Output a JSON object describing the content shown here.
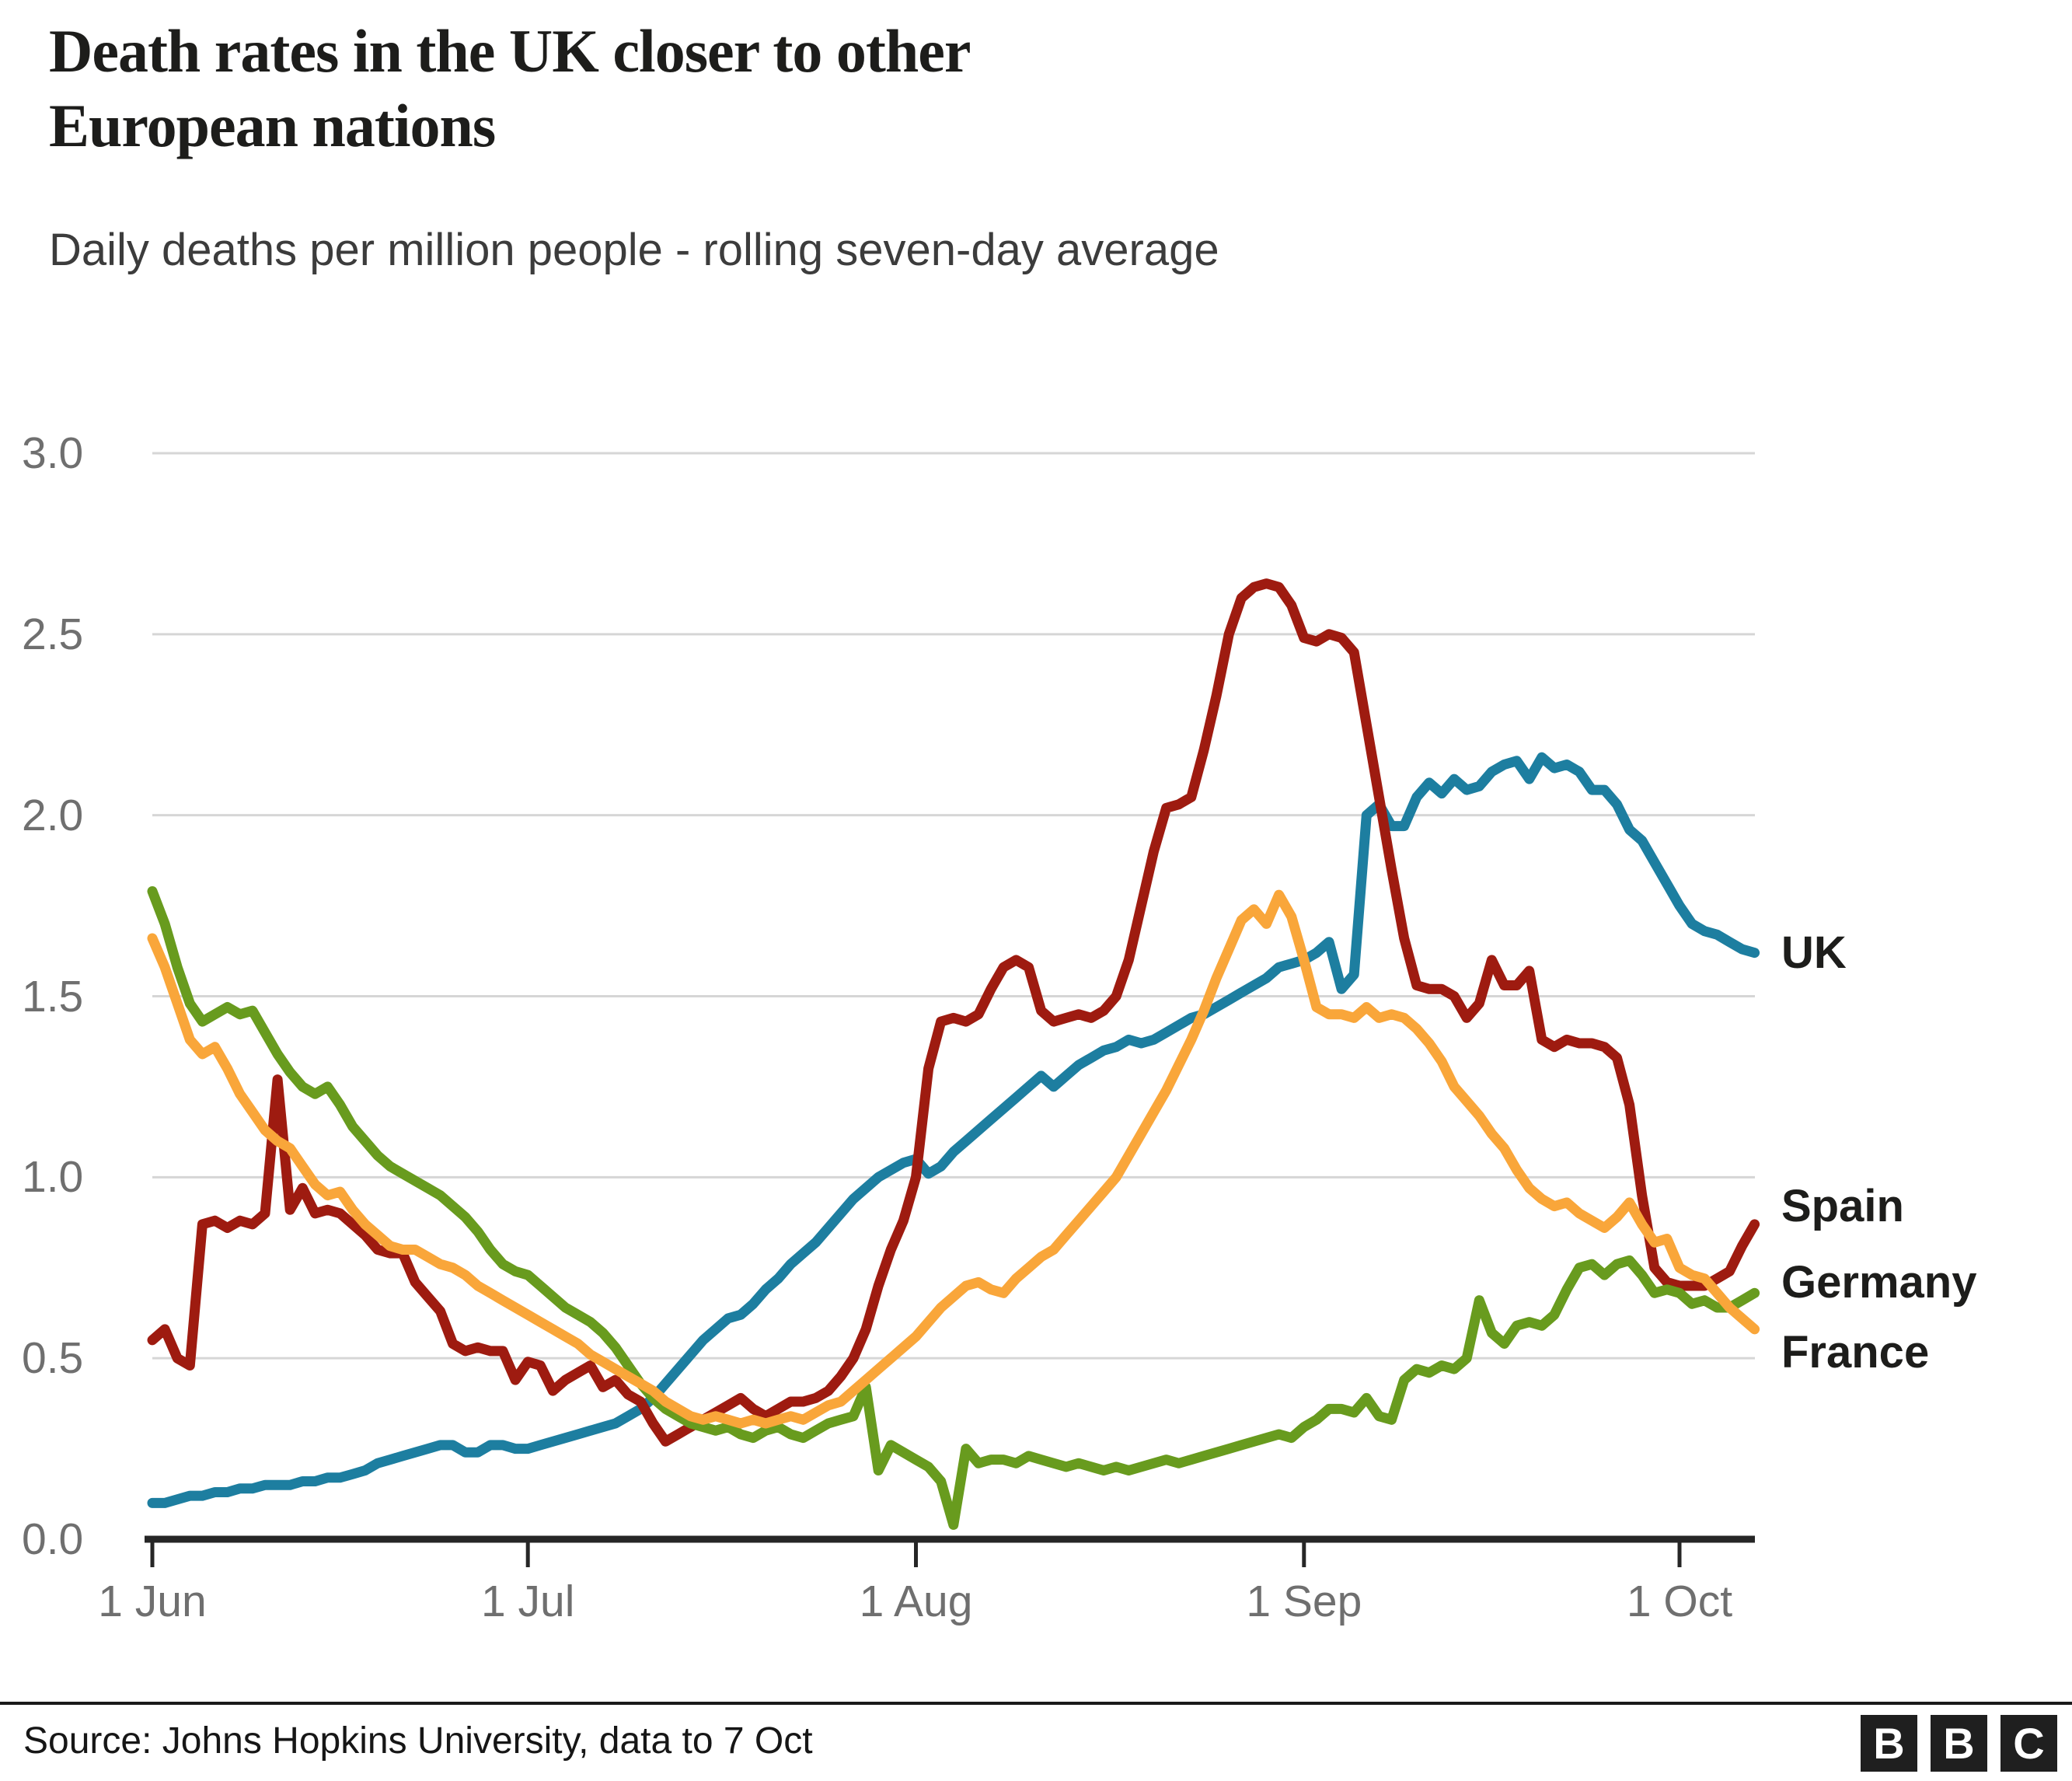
{
  "header": {
    "title_line1": "Death rates in the UK closer to other",
    "title_line2": "European nations",
    "subtitle": "Daily deaths per million people - rolling seven-day average"
  },
  "footer": {
    "source": "Source: Johns Hopkins University, data to 7 Oct",
    "logo_letters": [
      "B",
      "B",
      "C"
    ]
  },
  "colors": {
    "uk": "#1d7ea0",
    "spain": "#9e1b10",
    "germany": "#689b1e",
    "france": "#f9a63a",
    "gridline": "#d6d6d6",
    "axis": "#262626",
    "tick_text": "#6f6f6f",
    "label_text": "#1d1d1b"
  },
  "chart_data": {
    "type": "line",
    "title": "Death rates in the UK closer to other European nations",
    "subtitle": "Daily deaths per million people - rolling seven-day average",
    "grid": true,
    "legend_position": "right-of-line-ends",
    "x_axis": {
      "unit": "date",
      "start_label": "1 Jun",
      "data_end_label": "7 Oct",
      "tick_labels": [
        "1 Jun",
        "1 Jul",
        "1 Aug",
        "1 Sep",
        "1 Oct"
      ],
      "tick_day_offsets": [
        0,
        30,
        61,
        92,
        122
      ],
      "total_days": 128
    },
    "y_axis": {
      "label": "Daily deaths per million people (7-day rolling average)",
      "min": 0.0,
      "max": 3.0,
      "tick_step": 0.5,
      "tick_labels": [
        "0.0",
        "0.5",
        "1.0",
        "1.5",
        "2.0",
        "2.5",
        "3.0"
      ]
    },
    "series": [
      {
        "name": "UK",
        "color": "#1d7ea0",
        "end_value": 1.62,
        "values_daily": [
          0.1,
          0.1,
          0.11,
          0.12,
          0.12,
          0.13,
          0.13,
          0.14,
          0.14,
          0.15,
          0.15,
          0.15,
          0.16,
          0.16,
          0.17,
          0.17,
          0.18,
          0.19,
          0.21,
          0.22,
          0.23,
          0.24,
          0.25,
          0.26,
          0.26,
          0.24,
          0.24,
          0.26,
          0.26,
          0.25,
          0.25,
          0.26,
          0.27,
          0.28,
          0.29,
          0.3,
          0.31,
          0.32,
          0.34,
          0.36,
          0.39,
          0.43,
          0.47,
          0.51,
          0.55,
          0.58,
          0.61,
          0.62,
          0.65,
          0.69,
          0.72,
          0.76,
          0.79,
          0.82,
          0.86,
          0.9,
          0.94,
          0.97,
          1.0,
          1.02,
          1.04,
          1.05,
          1.01,
          1.03,
          1.07,
          1.1,
          1.13,
          1.16,
          1.19,
          1.22,
          1.25,
          1.28,
          1.25,
          1.28,
          1.31,
          1.33,
          1.35,
          1.36,
          1.38,
          1.37,
          1.38,
          1.4,
          1.42,
          1.44,
          1.45,
          1.47,
          1.49,
          1.51,
          1.53,
          1.55,
          1.58,
          1.59,
          1.6,
          1.62,
          1.65,
          1.52,
          1.56,
          2.0,
          2.03,
          1.97,
          1.97,
          2.05,
          2.09,
          2.06,
          2.1,
          2.07,
          2.08,
          2.12,
          2.14,
          2.15,
          2.1,
          2.16,
          2.13,
          2.14,
          2.12,
          2.07,
          2.07,
          2.03,
          1.96,
          1.93,
          1.87,
          1.81,
          1.75,
          1.7,
          1.68,
          1.67,
          1.65,
          1.63,
          1.62
        ]
      },
      {
        "name": "Spain",
        "color": "#9e1b10",
        "end_value": 0.87,
        "values_daily": [
          0.55,
          0.58,
          0.5,
          0.48,
          0.87,
          0.88,
          0.86,
          0.88,
          0.87,
          0.9,
          1.27,
          0.91,
          0.97,
          0.9,
          0.91,
          0.9,
          0.87,
          0.84,
          0.8,
          0.79,
          0.79,
          0.71,
          0.67,
          0.63,
          0.54,
          0.52,
          0.53,
          0.52,
          0.52,
          0.44,
          0.49,
          0.48,
          0.41,
          0.44,
          0.46,
          0.48,
          0.42,
          0.44,
          0.4,
          0.38,
          0.32,
          0.27,
          0.29,
          0.31,
          0.33,
          0.35,
          0.37,
          0.39,
          0.36,
          0.34,
          0.36,
          0.38,
          0.38,
          0.39,
          0.41,
          0.45,
          0.5,
          0.58,
          0.7,
          0.8,
          0.88,
          1.0,
          1.3,
          1.43,
          1.44,
          1.43,
          1.45,
          1.52,
          1.58,
          1.6,
          1.58,
          1.46,
          1.43,
          1.44,
          1.45,
          1.44,
          1.46,
          1.5,
          1.6,
          1.75,
          1.9,
          2.02,
          2.03,
          2.05,
          2.18,
          2.33,
          2.5,
          2.6,
          2.63,
          2.64,
          2.63,
          2.58,
          2.49,
          2.48,
          2.5,
          2.49,
          2.45,
          2.25,
          2.05,
          1.85,
          1.66,
          1.53,
          1.52,
          1.52,
          1.5,
          1.44,
          1.48,
          1.6,
          1.53,
          1.53,
          1.57,
          1.38,
          1.36,
          1.38,
          1.37,
          1.37,
          1.36,
          1.33,
          1.2,
          0.95,
          0.75,
          0.71,
          0.7,
          0.7,
          0.7,
          0.72,
          0.74,
          0.81,
          0.87
        ]
      },
      {
        "name": "Germany",
        "color": "#689b1e",
        "end_value": 0.68,
        "values_daily": [
          1.79,
          1.7,
          1.58,
          1.48,
          1.43,
          1.45,
          1.47,
          1.45,
          1.46,
          1.4,
          1.34,
          1.29,
          1.25,
          1.23,
          1.25,
          1.2,
          1.14,
          1.1,
          1.06,
          1.03,
          1.01,
          0.99,
          0.97,
          0.95,
          0.92,
          0.89,
          0.85,
          0.8,
          0.76,
          0.74,
          0.73,
          0.7,
          0.67,
          0.64,
          0.62,
          0.6,
          0.57,
          0.53,
          0.48,
          0.43,
          0.39,
          0.36,
          0.34,
          0.32,
          0.31,
          0.3,
          0.31,
          0.29,
          0.28,
          0.3,
          0.31,
          0.29,
          0.28,
          0.3,
          0.32,
          0.33,
          0.34,
          0.42,
          0.19,
          0.26,
          0.24,
          0.22,
          0.2,
          0.16,
          0.04,
          0.25,
          0.21,
          0.22,
          0.22,
          0.21,
          0.23,
          0.22,
          0.21,
          0.2,
          0.21,
          0.2,
          0.19,
          0.2,
          0.19,
          0.2,
          0.21,
          0.22,
          0.21,
          0.22,
          0.23,
          0.24,
          0.25,
          0.26,
          0.27,
          0.28,
          0.29,
          0.28,
          0.31,
          0.33,
          0.36,
          0.36,
          0.35,
          0.39,
          0.34,
          0.33,
          0.44,
          0.47,
          0.46,
          0.48,
          0.47,
          0.5,
          0.66,
          0.57,
          0.54,
          0.59,
          0.6,
          0.59,
          0.62,
          0.69,
          0.75,
          0.76,
          0.73,
          0.76,
          0.77,
          0.73,
          0.68,
          0.69,
          0.68,
          0.65,
          0.66,
          0.64,
          0.64,
          0.66,
          0.68
        ]
      },
      {
        "name": "France",
        "color": "#f9a63a",
        "end_value": 0.58,
        "values_daily": [
          1.66,
          1.58,
          1.48,
          1.38,
          1.34,
          1.36,
          1.3,
          1.23,
          1.18,
          1.13,
          1.1,
          1.08,
          1.03,
          0.98,
          0.95,
          0.96,
          0.91,
          0.87,
          0.84,
          0.81,
          0.8,
          0.8,
          0.78,
          0.76,
          0.75,
          0.73,
          0.7,
          0.68,
          0.66,
          0.64,
          0.62,
          0.6,
          0.58,
          0.56,
          0.54,
          0.51,
          0.49,
          0.47,
          0.45,
          0.43,
          0.41,
          0.38,
          0.36,
          0.34,
          0.33,
          0.34,
          0.33,
          0.32,
          0.33,
          0.32,
          0.33,
          0.34,
          0.33,
          0.35,
          0.37,
          0.38,
          0.41,
          0.44,
          0.47,
          0.5,
          0.53,
          0.56,
          0.6,
          0.64,
          0.67,
          0.7,
          0.71,
          0.69,
          0.68,
          0.72,
          0.75,
          0.78,
          0.8,
          0.84,
          0.88,
          0.92,
          0.96,
          1.0,
          1.06,
          1.12,
          1.18,
          1.24,
          1.31,
          1.38,
          1.46,
          1.55,
          1.63,
          1.71,
          1.74,
          1.7,
          1.78,
          1.72,
          1.6,
          1.47,
          1.45,
          1.45,
          1.44,
          1.47,
          1.44,
          1.45,
          1.44,
          1.41,
          1.37,
          1.32,
          1.25,
          1.21,
          1.17,
          1.12,
          1.08,
          1.02,
          0.97,
          0.94,
          0.92,
          0.93,
          0.9,
          0.88,
          0.86,
          0.89,
          0.93,
          0.87,
          0.82,
          0.83,
          0.75,
          0.73,
          0.72,
          0.68,
          0.64,
          0.61,
          0.58
        ]
      }
    ]
  }
}
